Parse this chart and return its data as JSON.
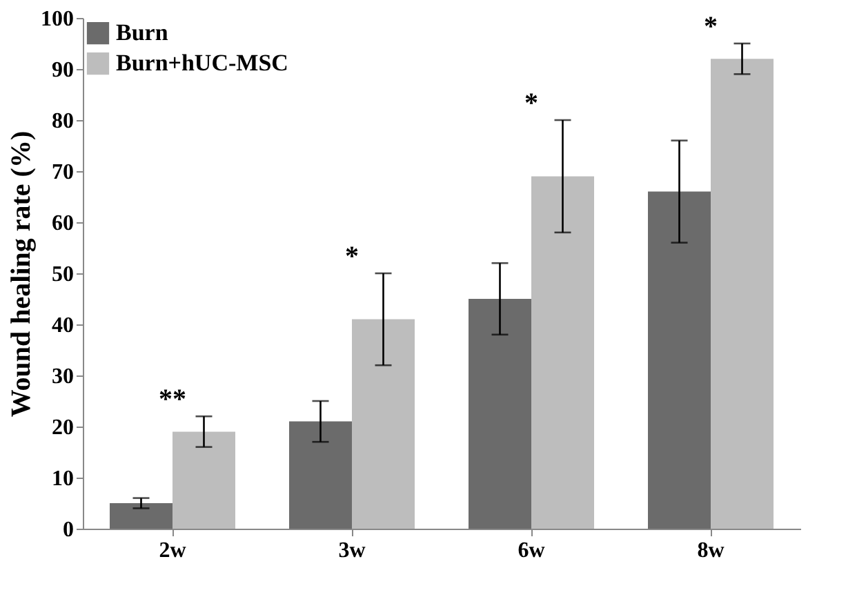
{
  "chart_data": {
    "type": "bar",
    "ylabel": "Wound healing rate  (%)",
    "categories": [
      "2w",
      "3w",
      "6w",
      "8w"
    ],
    "series": [
      {
        "name": "Burn",
        "color": "#6b6b6b",
        "values": [
          5,
          21,
          45,
          66
        ],
        "errors": [
          1,
          4,
          7,
          10
        ]
      },
      {
        "name": "Burn+hUC-MSC",
        "color": "#bdbdbd",
        "values": [
          19,
          41,
          69,
          92
        ],
        "errors": [
          3,
          9,
          11,
          3
        ]
      }
    ],
    "ylim": [
      0,
      100
    ],
    "yticks": [
      0,
      10,
      20,
      30,
      40,
      50,
      60,
      70,
      80,
      90,
      100
    ],
    "grid": false,
    "legend": "top left",
    "annotations": [
      "**",
      "*",
      "*",
      "*"
    ]
  }
}
